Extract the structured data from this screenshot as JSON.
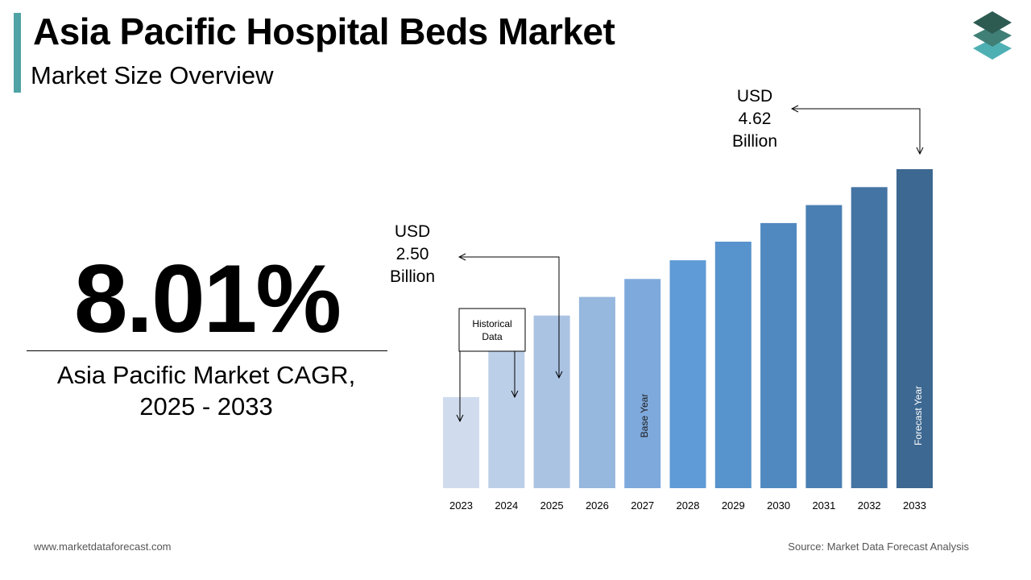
{
  "header": {
    "title": "Asia Pacific Hospital Beds Market",
    "subtitle": "Market Size Overview",
    "accent_color": "#4fa3a5"
  },
  "logo": {
    "icon": "stacked-layers-logo-icon",
    "colors": [
      "#2d5b52",
      "#3f7f76",
      "#4fb0b4"
    ]
  },
  "cagr": {
    "value": "8.01%",
    "caption_line1": "Asia Pacific Market CAGR,",
    "caption_line2": "2025 - 2033"
  },
  "annotations": {
    "start": {
      "line1": "USD",
      "line2": "2.50",
      "line3": "Billion"
    },
    "end": {
      "line1": "USD",
      "line2": "4.62",
      "line3": "Billion"
    },
    "historical": {
      "line1": "Historical",
      "line2": "Data"
    },
    "base_year": "Base Year",
    "forecast_year": "Forecast Year"
  },
  "chart_data": {
    "type": "bar",
    "categories": [
      "2023",
      "2024",
      "2025",
      "2026",
      "2027",
      "2028",
      "2029",
      "2030",
      "2031",
      "2032",
      "2033"
    ],
    "values": [
      1.32,
      2.06,
      2.5,
      2.77,
      3.03,
      3.3,
      3.57,
      3.84,
      4.1,
      4.36,
      4.62
    ],
    "ylim": [
      0,
      4.62
    ],
    "colors": [
      "#d0dcee",
      "#bccfe8",
      "#abc3e3",
      "#96b7de",
      "#7ea9dc",
      "#5f9bd6",
      "#5793cc",
      "#4f89c0",
      "#4a7fb3",
      "#4474a3",
      "#3d6891"
    ],
    "xlabel": "",
    "ylabel": "",
    "grid": false,
    "legend": "none"
  },
  "footer": {
    "website": "www.marketdataforecast.com",
    "source": "Source: Market Data Forecast Analysis"
  }
}
